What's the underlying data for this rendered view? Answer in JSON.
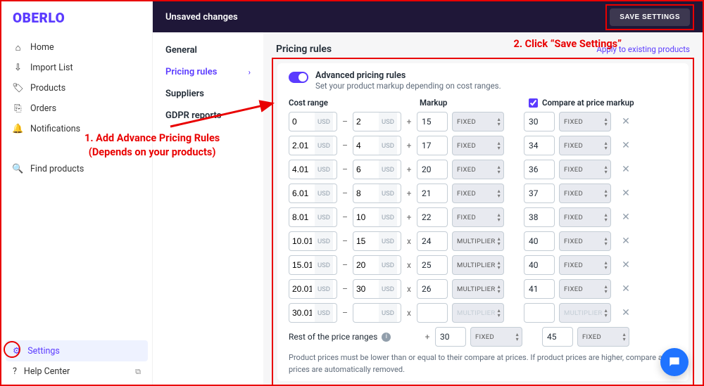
{
  "brand": "OBERLO",
  "sidebar": {
    "items": [
      {
        "label": "Home",
        "icon": "⌂"
      },
      {
        "label": "Import List",
        "icon": "⇩"
      },
      {
        "label": "Products",
        "icon": "🏷"
      },
      {
        "label": "Orders",
        "icon": "⎘"
      },
      {
        "label": "Notifications",
        "icon": "🔔"
      }
    ],
    "find": {
      "label": "Find products",
      "icon": "🔍"
    },
    "settings": "Settings",
    "help": "Help Center"
  },
  "topbar": {
    "unsaved": "Unsaved changes",
    "save": "SAVE SETTINGS"
  },
  "subnav": {
    "general": "General",
    "pricing": "Pricing rules",
    "suppliers": "Suppliers",
    "gdpr": "GDPR reports"
  },
  "content": {
    "title": "Pricing rules",
    "apply": "Apply to existing products",
    "adv_title": "Advanced pricing rules",
    "adv_sub": "Set your product markup depending on cost ranges.",
    "col_range": "Cost range",
    "col_markup": "Markup",
    "col_compare": "Compare at price markup",
    "currency": "USD",
    "types": {
      "fixed": "FIXED",
      "mult": "MULTIPLIER"
    },
    "rest": "Rest of the price ranges",
    "footnote": "Product prices must be lower than or equal to their compare at prices. If product prices are higher, compare at prices are automatically removed."
  },
  "rules": [
    {
      "lo": "0",
      "hi": "2",
      "op": "+",
      "m": "15",
      "mt": "FIXED",
      "c": "30",
      "ct": "FIXED"
    },
    {
      "lo": "2.01",
      "hi": "4",
      "op": "+",
      "m": "17",
      "mt": "FIXED",
      "c": "34",
      "ct": "FIXED"
    },
    {
      "lo": "4.01",
      "hi": "6",
      "op": "+",
      "m": "20",
      "mt": "FIXED",
      "c": "36",
      "ct": "FIXED"
    },
    {
      "lo": "6.01",
      "hi": "8",
      "op": "+",
      "m": "21",
      "mt": "FIXED",
      "c": "37",
      "ct": "FIXED"
    },
    {
      "lo": "8.01",
      "hi": "10",
      "op": "+",
      "m": "22",
      "mt": "FIXED",
      "c": "38",
      "ct": "FIXED"
    },
    {
      "lo": "10.01",
      "hi": "15",
      "op": "x",
      "m": "24",
      "mt": "MULTIPLIER",
      "c": "40",
      "ct": "FIXED"
    },
    {
      "lo": "15.01",
      "hi": "20",
      "op": "x",
      "m": "25",
      "mt": "MULTIPLIER",
      "c": "40",
      "ct": "FIXED"
    },
    {
      "lo": "20.01",
      "hi": "30",
      "op": "x",
      "m": "26",
      "mt": "MULTIPLIER",
      "c": "41",
      "ct": "FIXED"
    },
    {
      "lo": "30.01",
      "hi": "",
      "op": "x",
      "m": "",
      "mt": "MULTIPLIER",
      "c": "",
      "ct": "MULTIPLIER",
      "disabled": true
    }
  ],
  "rest_rule": {
    "op": "+",
    "m": "30",
    "mt": "FIXED",
    "c": "45",
    "ct": "FIXED"
  },
  "annotations": {
    "step1_l1": "1. Add Advance Pricing Rules",
    "step1_l2": "(Depends on your products)",
    "step2": "2. Click “Save Settings”"
  },
  "colors": {
    "accent": "#5b3bff",
    "danger": "#e90000",
    "topbar": "#1f1738",
    "chat": "#1f73ff"
  }
}
